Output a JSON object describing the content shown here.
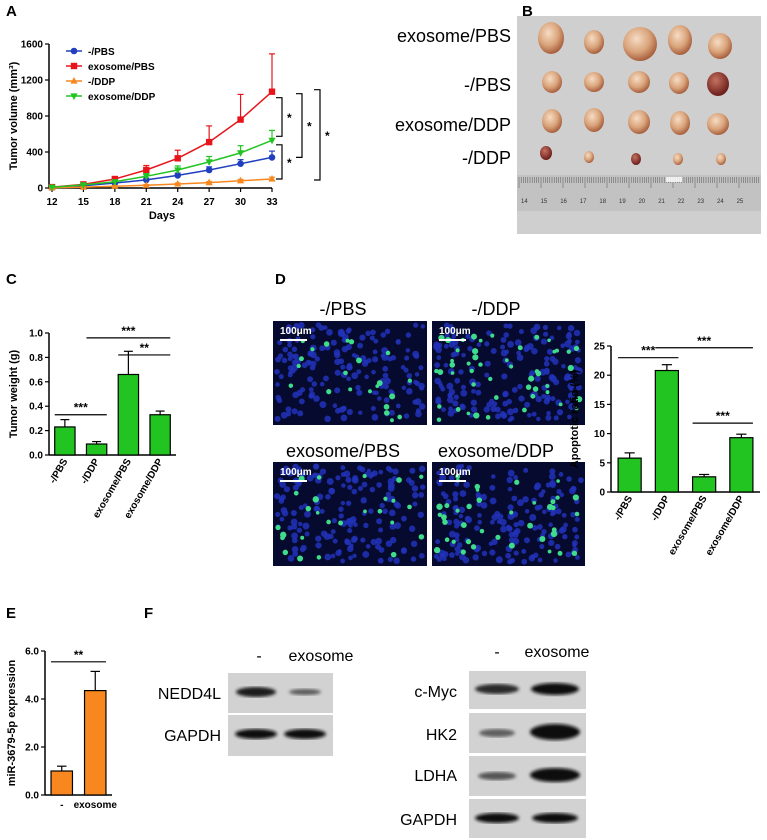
{
  "panel_letters": [
    "A",
    "B",
    "C",
    "D",
    "E",
    "F"
  ],
  "chart_data": [
    {
      "id": "A",
      "type": "line",
      "xlabel": "Days",
      "ylabel": "Tumor volume (mm³)",
      "x": [
        12,
        15,
        18,
        21,
        24,
        27,
        30,
        33
      ],
      "ylim": [
        0,
        1600
      ],
      "yticks": [
        0,
        400,
        800,
        1200,
        1600
      ],
      "colors": {
        "-/PBS": "#1f3fbf",
        "exosome/PBS": "#e8141b",
        "-/DDP": "#f7871e",
        "exosome/DDP": "#22c422"
      },
      "series": [
        {
          "name": "-/PBS",
          "values": [
            5,
            25,
            55,
            90,
            140,
            200,
            270,
            340
          ],
          "errors": [
            3,
            8,
            12,
            18,
            25,
            35,
            45,
            70
          ]
        },
        {
          "name": "exosome/PBS",
          "values": [
            10,
            40,
            100,
            200,
            330,
            510,
            760,
            1070
          ],
          "errors": [
            5,
            12,
            25,
            50,
            90,
            180,
            280,
            420
          ]
        },
        {
          "name": "-/DDP",
          "values": [
            3,
            10,
            20,
            30,
            45,
            60,
            80,
            100
          ],
          "errors": [
            2,
            4,
            6,
            8,
            10,
            12,
            15,
            20
          ]
        },
        {
          "name": "exosome/DDP",
          "values": [
            8,
            35,
            70,
            130,
            200,
            290,
            390,
            530
          ],
          "errors": [
            4,
            10,
            18,
            30,
            45,
            60,
            80,
            110
          ]
        }
      ],
      "significance": [
        "*",
        "*",
        "*"
      ]
    },
    {
      "id": "C",
      "type": "bar",
      "ylabel": "Tumor weight (g)",
      "categories": [
        "-/PBS",
        "-/DDP",
        "exosome/PBS",
        "exosome/DDP"
      ],
      "values": [
        0.23,
        0.09,
        0.66,
        0.33
      ],
      "errors": [
        0.06,
        0.02,
        0.19,
        0.03
      ],
      "ylim": [
        0,
        1.0
      ],
      "yticks": [
        "0.0",
        "0.2",
        "0.4",
        "0.6",
        "0.8",
        "1.0"
      ],
      "color": "#22c422",
      "significance": [
        "***",
        "***",
        "**"
      ]
    },
    {
      "id": "D",
      "type": "bar",
      "ylabel": "Apoptotic ratio (%)",
      "categories": [
        "-/PBS",
        "-/DDP",
        "exosome/PBS",
        "exosome/DDP"
      ],
      "values": [
        5.8,
        20.8,
        2.6,
        9.3
      ],
      "errors": [
        0.9,
        1.0,
        0.4,
        0.6
      ],
      "ylim": [
        0,
        25
      ],
      "yticks": [
        "0",
        "5",
        "10",
        "15",
        "20",
        "25"
      ],
      "color": "#22c422",
      "significance": [
        "***",
        "***",
        "***"
      ]
    },
    {
      "id": "E",
      "type": "bar",
      "ylabel": "miR-3679-5p expression",
      "categories": [
        "-",
        "exosome"
      ],
      "values": [
        1.0,
        4.35
      ],
      "errors": [
        0.2,
        0.8
      ],
      "ylim": [
        0,
        6.0
      ],
      "yticks": [
        "0.0",
        "2.0",
        "4.0",
        "6.0"
      ],
      "color": "#f7871e",
      "significance": [
        "**"
      ]
    }
  ],
  "photoB": {
    "row_labels": [
      "exosome/PBS",
      "-/PBS",
      "exosome/DDP",
      "-/DDP"
    ],
    "ruler_numbers": [
      "14",
      "15",
      "16",
      "17",
      "18",
      "19",
      "20",
      "21",
      "22",
      "23",
      "24",
      "25"
    ]
  },
  "microscopy": {
    "titles": [
      "-/PBS",
      "-/DDP",
      "exosome/PBS",
      "exosome/DDP"
    ],
    "scale_label": "100μm"
  },
  "blots": {
    "left": {
      "header": [
        "-",
        "exosome"
      ],
      "bands": [
        "NEDD4L",
        "GAPDH"
      ]
    },
    "right": {
      "header": [
        "-",
        "exosome"
      ],
      "bands": [
        "c-Myc",
        "HK2",
        "LDHA",
        "GAPDH"
      ]
    }
  }
}
